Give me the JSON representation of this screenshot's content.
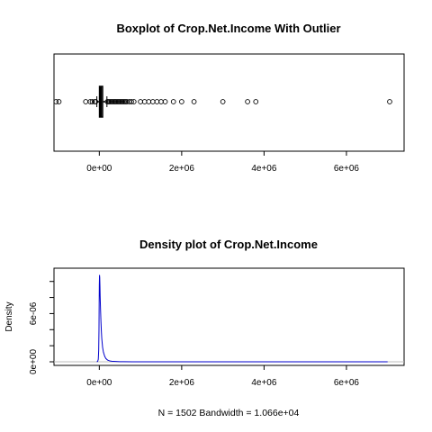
{
  "chart_data": [
    {
      "type": "boxplot",
      "title": "Boxplot of Crop.Net.Income With Outlier",
      "orientation": "horizontal",
      "xlim": [
        -1100000,
        7400000
      ],
      "xticks": [
        0,
        2000000,
        4000000,
        6000000
      ],
      "xtick_labels": [
        "0e+00",
        "2e+06",
        "4e+06",
        "6e+06"
      ],
      "box": {
        "whisker_low": -60000,
        "q1": 5000,
        "median": 30000,
        "q3": 80000,
        "whisker_high": 185000
      },
      "outliers": [
        -1050000,
        -980000,
        -330000,
        -220000,
        -170000,
        -110000,
        -90000,
        195000,
        220000,
        250000,
        280000,
        310000,
        340000,
        370000,
        400000,
        430000,
        460000,
        490000,
        520000,
        550000,
        580000,
        610000,
        640000,
        670000,
        730000,
        780000,
        840000,
        1000000,
        1100000,
        1200000,
        1300000,
        1400000,
        1500000,
        1600000,
        1800000,
        2000000,
        2300000,
        3000000,
        3600000,
        3800000,
        7050000
      ]
    },
    {
      "type": "line",
      "title": "Density plot of Crop.Net.Income",
      "xlabel": "N = 1502   Bandwidth = 1.066e+04",
      "ylabel": "Density",
      "xlim": [
        -1100000,
        7400000
      ],
      "ylim": [
        0,
        1.12e-05
      ],
      "xticks": [
        0,
        2000000,
        4000000,
        6000000
      ],
      "xtick_labels": [
        "0e+00",
        "2e+06",
        "4e+06",
        "6e+06"
      ],
      "yticks": [
        0,
        6e-06
      ],
      "ytick_labels": [
        "0e+00",
        "6e-06"
      ],
      "x": [
        -60000,
        -40000,
        -25000,
        -15000,
        -8000,
        -3000,
        0,
        5000,
        10000,
        15000,
        20000,
        30000,
        40000,
        50000,
        60000,
        80000,
        100000,
        130000,
        160000,
        200000,
        250000,
        300000,
        400000,
        500000,
        600000,
        800000,
        1000000,
        2000000,
        4000000,
        7000000
      ],
      "y": [
        0,
        5e-08,
        3e-07,
        1.4e-06,
        4e-06,
        7.5e-06,
        9.5e-06,
        1.08e-05,
        1.05e-05,
        9.5e-06,
        8.2e-06,
        6.5e-06,
        5e-06,
        3.8e-06,
        2.9e-06,
        1.8e-06,
        1.2e-06,
        7e-07,
        4e-07,
        2.2e-07,
        1.2e-07,
        7e-08,
        4e-08,
        2e-08,
        1e-08,
        5e-09,
        3e-09,
        1e-09,
        5e-10,
        3e-10
      ],
      "line_color": "#0000cc",
      "baseline_color": "#bebebe"
    }
  ]
}
